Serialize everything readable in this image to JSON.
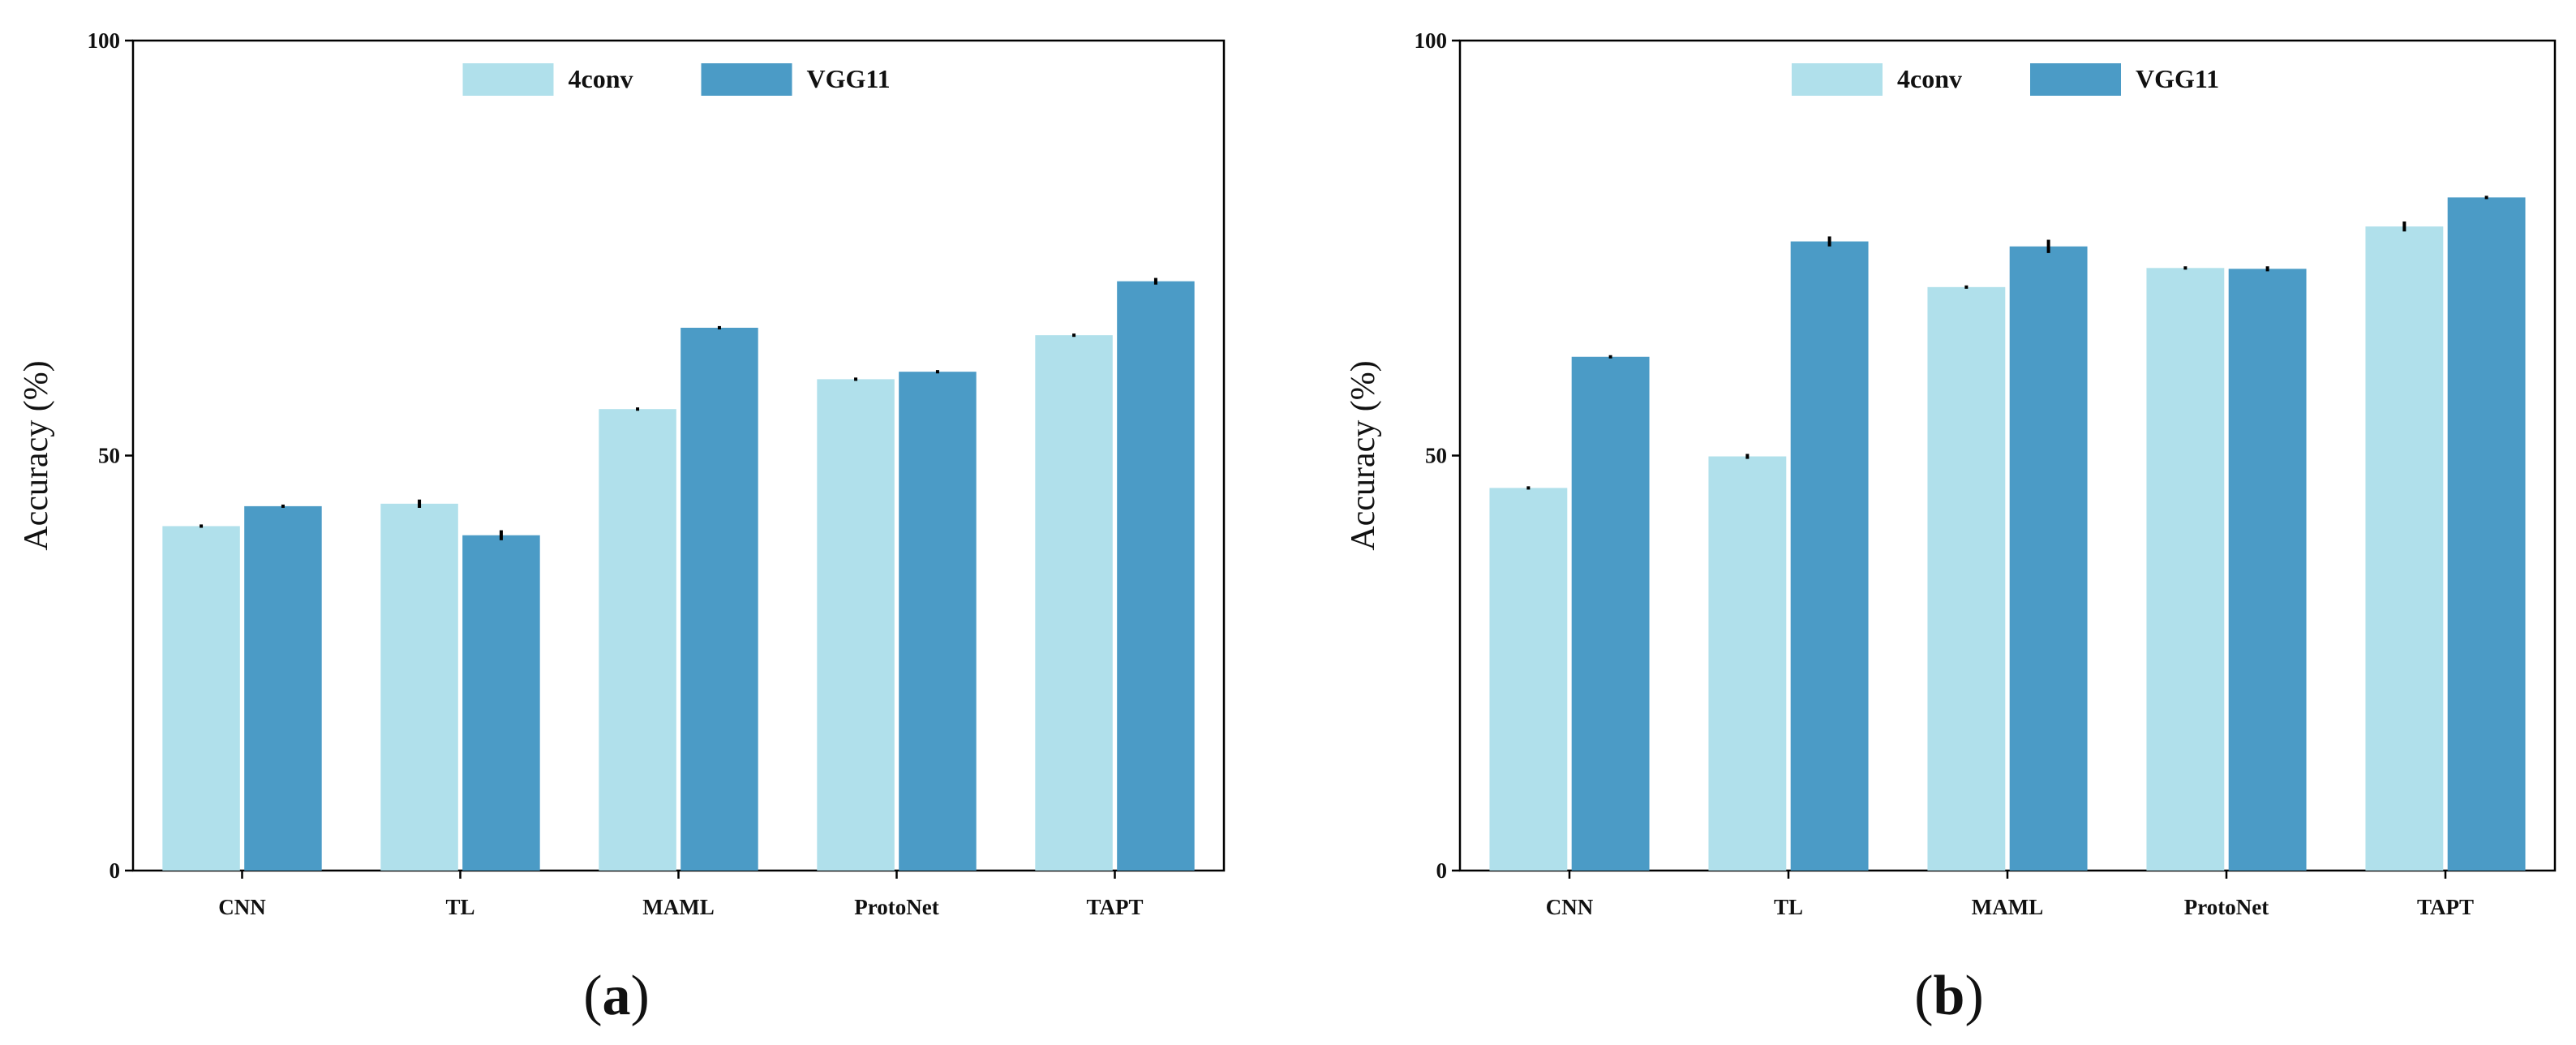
{
  "colors": {
    "series_4conv": "#b0e0eb",
    "series_vgg11": "#4b9bc6",
    "axis": "#000000",
    "error_bar": "#000000"
  },
  "chart_data": [
    {
      "type": "bar",
      "panel_label": "a",
      "ylabel": "Accuracy (%)",
      "xlabel": "",
      "ylim": [
        0,
        100
      ],
      "yticks": [
        0,
        50,
        100
      ],
      "legend_position": "top-center",
      "categories": [
        "CNN",
        "TL",
        "MAML",
        "ProtoNet",
        "TAPT"
      ],
      "series": [
        {
          "name": "4conv",
          "values": [
            41.5,
            44.2,
            55.6,
            59.2,
            64.5
          ],
          "errors": [
            0.2,
            0.5,
            0.2,
            0.2,
            0.2
          ]
        },
        {
          "name": "VGG11",
          "values": [
            43.9,
            40.4,
            65.4,
            60.1,
            71.0
          ],
          "errors": [
            0.1,
            0.6,
            0.2,
            0.2,
            0.4
          ]
        }
      ]
    },
    {
      "type": "bar",
      "panel_label": "b",
      "ylabel": "Accuracy (%)",
      "xlabel": "",
      "ylim": [
        0,
        100
      ],
      "yticks": [
        0,
        50,
        100
      ],
      "legend_position": "top-center",
      "categories": [
        "CNN",
        "TL",
        "MAML",
        "ProtoNet",
        "TAPT"
      ],
      "series": [
        {
          "name": "4conv",
          "values": [
            46.1,
            49.9,
            70.3,
            72.6,
            77.6
          ],
          "errors": [
            0.2,
            0.3,
            0.2,
            0.2,
            0.6
          ]
        },
        {
          "name": "VGG11",
          "values": [
            61.9,
            75.8,
            75.2,
            72.5,
            81.1
          ],
          "errors": [
            0.1,
            0.6,
            0.8,
            0.3,
            0.2
          ]
        }
      ]
    }
  ]
}
